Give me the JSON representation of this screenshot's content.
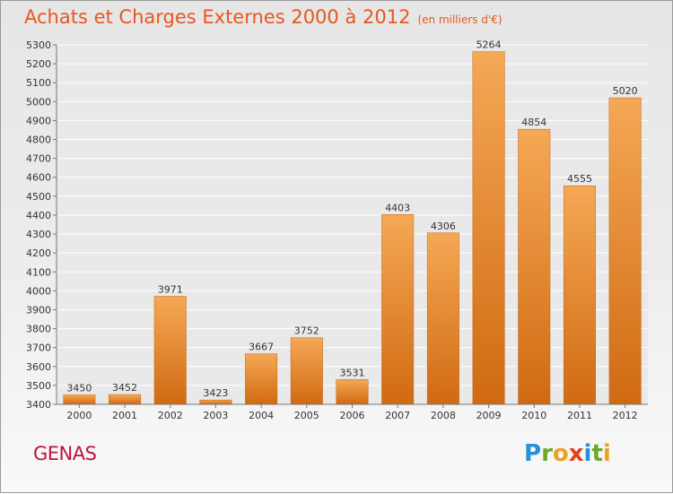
{
  "header": {
    "title": "Achats et Charges Externes 2000 à 2012",
    "unit": "(en milliers d'€)"
  },
  "footer": {
    "city": "GENAS",
    "brand_letters": [
      "P",
      "r",
      "o",
      "x",
      "i",
      "t",
      "i"
    ],
    "brand_colors": [
      "#2a8fd6",
      "#6aa92b",
      "#f0a020",
      "#e0431f",
      "#2a8fd6",
      "#6aa92b",
      "#f0a020"
    ]
  },
  "colors": {
    "bar_top": "#f5a855",
    "bar_bottom": "#d06a12",
    "bar_stroke": "#c8640f",
    "plot_bg": "#e9e9e9",
    "grid": "#ffffff",
    "axis": "#777777",
    "text": "#333333"
  },
  "chart_data": {
    "type": "bar",
    "categories": [
      "2000",
      "2001",
      "2002",
      "2003",
      "2004",
      "2005",
      "2006",
      "2007",
      "2008",
      "2009",
      "2010",
      "2011",
      "2012"
    ],
    "values": [
      3450,
      3452,
      3971,
      3423,
      3667,
      3752,
      3531,
      4403,
      4306,
      5264,
      4854,
      4555,
      5020
    ],
    "ylim": [
      3400,
      5300
    ],
    "yticks": [
      3400,
      3500,
      3600,
      3700,
      3800,
      3900,
      4000,
      4100,
      4200,
      4300,
      4400,
      4500,
      4600,
      4700,
      4800,
      4900,
      5000,
      5100,
      5200,
      5300
    ],
    "grid": true,
    "data_labels": true
  }
}
